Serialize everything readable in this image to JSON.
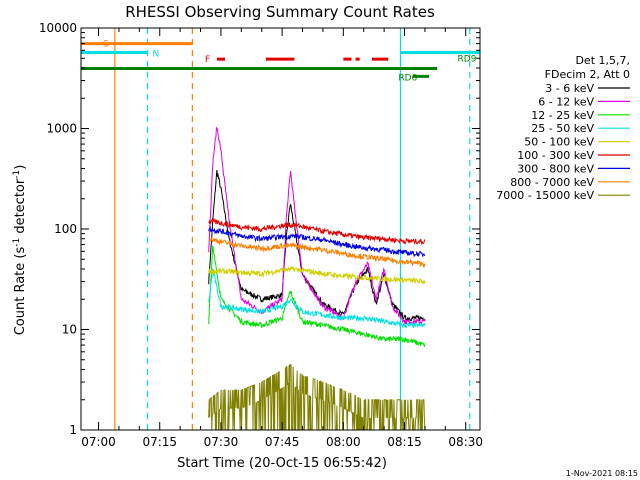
{
  "chart_data": {
    "type": "line",
    "title": "RHESSI Observing Summary Count Rates",
    "xlabel": "Start Time (20-Oct-15 06:55:42)",
    "ylabel_main": "Count Rate (s",
    "ylabel_sup1": "-1",
    "ylabel_mid": " detector",
    "ylabel_sup2": "-1",
    "ylabel_end": ")",
    "footer": "1-Nov-2021 08:15",
    "y_scale": "log",
    "ylim": [
      1,
      10000
    ],
    "xlim": [
      "06:55:42",
      "08:33:30"
    ],
    "x_ticks": [
      "07:00",
      "07:15",
      "07:30",
      "07:45",
      "08:00",
      "08:15",
      "08:30"
    ],
    "y_ticks": [
      "1",
      "10",
      "100",
      "1000",
      "10000"
    ],
    "legend_header": [
      "Det 1,5,7,",
      "FDecim 2, Att 0"
    ],
    "legend_position": "right",
    "series": [
      {
        "name": "3 - 6 keV",
        "color": "#000000",
        "x": [
          "07:27",
          "07:28",
          "07:29",
          "07:30",
          "07:32",
          "07:35",
          "07:40",
          "07:45",
          "07:46",
          "07:47",
          "07:50",
          "07:55",
          "08:00",
          "08:03",
          "08:06",
          "08:08",
          "08:10",
          "08:12",
          "08:15",
          "08:20"
        ],
        "values": [
          30,
          120,
          380,
          250,
          80,
          25,
          20,
          22,
          80,
          180,
          35,
          18,
          14,
          28,
          40,
          18,
          35,
          18,
          13,
          13
        ]
      },
      {
        "name": "6 - 12 keV",
        "color": "#e000e0",
        "x": [
          "07:27",
          "07:28",
          "07:29",
          "07:30",
          "07:32",
          "07:35",
          "07:40",
          "07:45",
          "07:46",
          "07:47",
          "07:50",
          "07:55",
          "08:00",
          "08:03",
          "08:06",
          "08:08",
          "08:10",
          "08:12",
          "08:15",
          "08:20"
        ],
        "values": [
          60,
          450,
          1050,
          600,
          120,
          20,
          15,
          20,
          120,
          380,
          35,
          17,
          13,
          30,
          45,
          20,
          40,
          17,
          12,
          12
        ]
      },
      {
        "name": "12 - 25 keV",
        "color": "#00e000",
        "x": [
          "07:27",
          "07:28",
          "07:30",
          "07:35",
          "07:40",
          "07:45",
          "07:47",
          "07:50",
          "07:55",
          "08:00",
          "08:05",
          "08:10",
          "08:15",
          "08:20"
        ],
        "values": [
          12,
          70,
          20,
          12,
          11,
          13,
          24,
          12,
          11,
          10,
          9,
          8,
          8,
          7
        ]
      },
      {
        "name": "25 - 50 keV",
        "color": "#00e0e0",
        "x": [
          "07:27",
          "07:28",
          "07:30",
          "07:35",
          "07:40",
          "07:45",
          "07:47",
          "07:50",
          "07:55",
          "08:00",
          "08:05",
          "08:10",
          "08:15",
          "08:20"
        ],
        "values": [
          18,
          40,
          17,
          16,
          15,
          17,
          20,
          15,
          14,
          13,
          13,
          12,
          11,
          11
        ]
      },
      {
        "name": "50 - 100 keV",
        "color": "#d0d000",
        "x": [
          "07:27",
          "07:30",
          "07:35",
          "07:40",
          "07:45",
          "07:48",
          "07:55",
          "08:00",
          "08:05",
          "08:10",
          "08:15",
          "08:20"
        ],
        "values": [
          38,
          38,
          37,
          36,
          39,
          40,
          36,
          34,
          33,
          32,
          31,
          30
        ]
      },
      {
        "name": "100 - 300 keV",
        "color": "#e00000",
        "x": [
          "07:27",
          "07:30",
          "07:35",
          "07:40",
          "07:45",
          "07:48",
          "07:55",
          "08:00",
          "08:05",
          "08:10",
          "08:15",
          "08:20"
        ],
        "values": [
          120,
          115,
          105,
          100,
          108,
          110,
          95,
          88,
          82,
          80,
          76,
          75
        ]
      },
      {
        "name": "300 - 800 keV",
        "color": "#0000e0",
        "x": [
          "07:27",
          "07:30",
          "07:35",
          "07:40",
          "07:45",
          "07:48",
          "07:55",
          "08:00",
          "08:05",
          "08:10",
          "08:15",
          "08:20"
        ],
        "values": [
          100,
          95,
          85,
          80,
          84,
          85,
          78,
          70,
          65,
          62,
          58,
          56
        ]
      },
      {
        "name": "800 - 7000 keV",
        "color": "#ff7f00",
        "x": [
          "07:27",
          "07:30",
          "07:35",
          "07:40",
          "07:45",
          "07:48",
          "07:55",
          "08:00",
          "08:05",
          "08:10",
          "08:15",
          "08:20"
        ],
        "values": [
          80,
          75,
          68,
          64,
          68,
          68,
          62,
          57,
          53,
          50,
          47,
          45
        ]
      },
      {
        "name": "7000 - 15000 keV",
        "color": "#808000",
        "x": [
          "07:27",
          "07:30",
          "07:35",
          "07:40",
          "07:45",
          "07:47",
          "07:50",
          "07:55",
          "08:00",
          "08:05",
          "08:10",
          "08:15",
          "08:20"
        ],
        "values": [
          2,
          2.5,
          2.5,
          3,
          4,
          4.5,
          3.5,
          3,
          2.5,
          2,
          2,
          2,
          2
        ]
      }
    ],
    "annotations": {
      "S": {
        "label": "S",
        "color": "#ff7f00",
        "x_start": "06:55:42",
        "x_end": "07:23",
        "level": 7000
      },
      "N": {
        "label": "N",
        "color": "#00e0e0",
        "x_start": "06:55:42",
        "x_end": "07:12",
        "level": 5700
      },
      "F": {
        "label": "F",
        "color": "#e00000",
        "segments": [
          [
            "07:29",
            "07:31"
          ],
          [
            "07:41",
            "07:48"
          ],
          [
            "08:00",
            "08:02"
          ],
          [
            "08:03",
            "08:04"
          ],
          [
            "08:07",
            "08:11"
          ]
        ],
        "level": 4900
      },
      "RD9": {
        "label": "RD9",
        "color": "#00e0e0",
        "x_start": "08:14",
        "x_end": "08:33:30",
        "level": 5700
      },
      "RD6": {
        "label": "RD6",
        "color": "#008000",
        "x_start": "08:17",
        "x_end": "08:21",
        "level": 3300
      },
      "saa": {
        "color": "#008000",
        "x_start": "06:55:42",
        "x_end": "08:23",
        "level": 3950
      }
    },
    "vertical_lines": [
      {
        "x": "07:04",
        "color": "#ff7f00",
        "style": "solid"
      },
      {
        "x": "07:12",
        "color": "#00e0e0",
        "style": "dashed"
      },
      {
        "x": "07:23",
        "color": "#ff7f00",
        "style": "dashed"
      },
      {
        "x": "08:14",
        "color": "#00e0e0",
        "style": "solid"
      },
      {
        "x": "08:31",
        "color": "#00e0e0",
        "style": "dashed"
      }
    ],
    "grid": false
  }
}
